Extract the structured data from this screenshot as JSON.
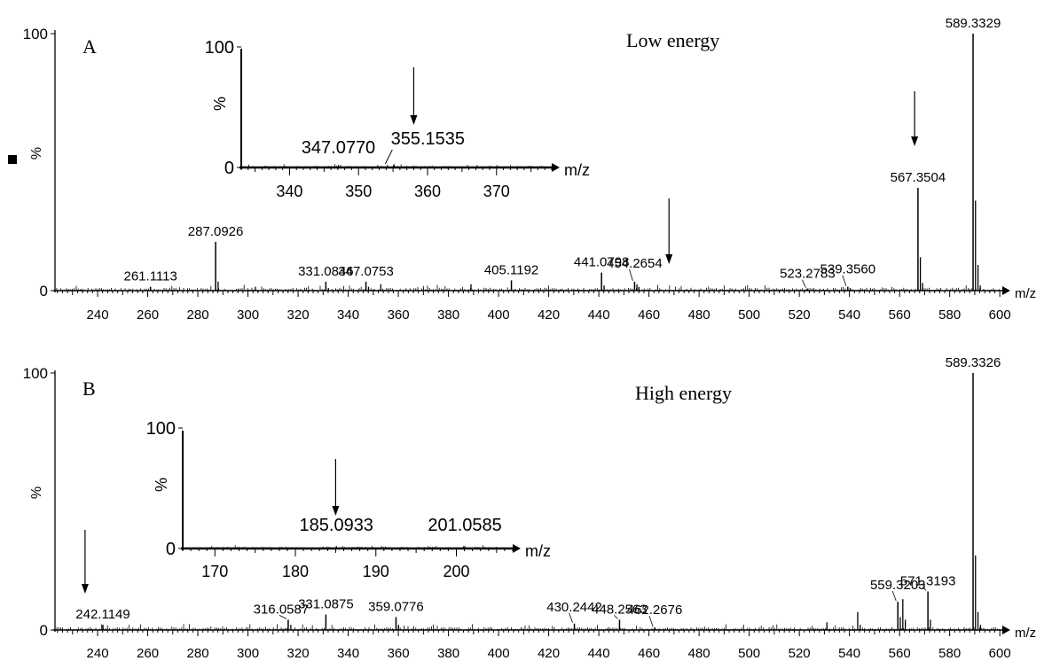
{
  "chart_data": [
    {
      "type": "bar",
      "panel_label": "A",
      "title": "Low energy",
      "xlabel": "m/z",
      "ylabel": "%",
      "xlim": [
        223,
        601
      ],
      "ylim": [
        0,
        100
      ],
      "xticks": [
        240,
        260,
        280,
        300,
        320,
        340,
        360,
        380,
        400,
        420,
        440,
        460,
        480,
        500,
        520,
        540,
        560,
        580,
        600
      ],
      "yticks": [
        0,
        100
      ],
      "peaks": [
        {
          "x": 261.1113,
          "y": 1.5,
          "label": "261.1113"
        },
        {
          "x": 287.0926,
          "y": 19,
          "label": "287.0926"
        },
        {
          "x": 331.0846,
          "y": 3.5,
          "label": "331.0846"
        },
        {
          "x": 347.0753,
          "y": 3.5,
          "label": "347.0753"
        },
        {
          "x": 405.1192,
          "y": 4,
          "label": "405.1192"
        },
        {
          "x": 441.0798,
          "y": 7,
          "label": "441.0798"
        },
        {
          "x": 454.2654,
          "y": 3.5,
          "label": "454.2654"
        },
        {
          "x": 523.2783,
          "y": 0.8,
          "label": "523.2783"
        },
        {
          "x": 539.356,
          "y": 1.5,
          "label": "539.3560"
        },
        {
          "x": 567.3504,
          "y": 40,
          "label": "567.3504"
        },
        {
          "x": 589.3329,
          "y": 100,
          "label": "589.3329"
        }
      ],
      "minor_peaks": [
        {
          "x": 288.1,
          "y": 3.5
        },
        {
          "x": 303,
          "y": 1.5
        },
        {
          "x": 332.1,
          "y": 1
        },
        {
          "x": 348.1,
          "y": 1.5
        },
        {
          "x": 353,
          "y": 2.5
        },
        {
          "x": 389,
          "y": 2.5
        },
        {
          "x": 442.1,
          "y": 2
        },
        {
          "x": 455.2,
          "y": 2.5
        },
        {
          "x": 456,
          "y": 1.5
        },
        {
          "x": 540.3,
          "y": 1
        },
        {
          "x": 568.3,
          "y": 13
        },
        {
          "x": 569.2,
          "y": 3
        },
        {
          "x": 590.3,
          "y": 35
        },
        {
          "x": 591.3,
          "y": 10
        },
        {
          "x": 592.2,
          "y": 2
        }
      ],
      "arrows_at_mz": [
        468,
        566
      ],
      "inset": {
        "xlabel": "m/z",
        "ylabel": "%",
        "xlim": [
          333,
          378
        ],
        "ylim": [
          0,
          100
        ],
        "xticks": [
          340,
          350,
          360,
          370
        ],
        "yticks": [
          0,
          100
        ],
        "peaks": [
          {
            "x": 347.077,
            "y": 0.5,
            "label": "347.0770"
          },
          {
            "x": 355.1535,
            "y": 1.2,
            "label": "355.1535"
          }
        ],
        "arrow_at_mz": 358
      }
    },
    {
      "type": "bar",
      "panel_label": "B",
      "title": "High energy",
      "xlabel": "m/z",
      "ylabel": "%",
      "xlim": [
        223,
        601
      ],
      "ylim": [
        0,
        100
      ],
      "xticks": [
        240,
        260,
        280,
        300,
        320,
        340,
        360,
        380,
        400,
        420,
        440,
        460,
        480,
        500,
        520,
        540,
        560,
        580,
        600
      ],
      "yticks": [
        0,
        100
      ],
      "peaks": [
        {
          "x": 242.1149,
          "y": 2,
          "label": "242.1149"
        },
        {
          "x": 316.0587,
          "y": 4,
          "label": "316.0587"
        },
        {
          "x": 331.0875,
          "y": 6,
          "label": "331.0875"
        },
        {
          "x": 359.0776,
          "y": 5,
          "label": "359.0776"
        },
        {
          "x": 430.2442,
          "y": 2.5,
          "label": "430.2442"
        },
        {
          "x": 448.2563,
          "y": 4,
          "label": "448.2563"
        },
        {
          "x": 462.2676,
          "y": 1,
          "label": "462.2676"
        },
        {
          "x": 559.3203,
          "y": 11,
          "label": "559.3203"
        },
        {
          "x": 571.3193,
          "y": 15,
          "label": "571.3193"
        },
        {
          "x": 589.3326,
          "y": 100,
          "label": "589.3326"
        }
      ],
      "minor_peaks": [
        {
          "x": 317.1,
          "y": 2
        },
        {
          "x": 360.1,
          "y": 2
        },
        {
          "x": 531,
          "y": 3
        },
        {
          "x": 543.3,
          "y": 7
        },
        {
          "x": 544.3,
          "y": 2
        },
        {
          "x": 560.3,
          "y": 5
        },
        {
          "x": 561.3,
          "y": 12
        },
        {
          "x": 562.3,
          "y": 4
        },
        {
          "x": 572.3,
          "y": 4
        },
        {
          "x": 590.3,
          "y": 29
        },
        {
          "x": 591.3,
          "y": 7
        },
        {
          "x": 592.3,
          "y": 2
        }
      ],
      "arrows_at_mz": [
        235
      ],
      "inset": {
        "xlabel": "m/z",
        "ylabel": "%",
        "xlim": [
          166,
          207
        ],
        "ylim": [
          0,
          100
        ],
        "xticks": [
          170,
          180,
          190,
          200
        ],
        "yticks": [
          0,
          100
        ],
        "peaks": [
          {
            "x": 185.0933,
            "y": 0.5,
            "label": "185.0933"
          },
          {
            "x": 201.0585,
            "y": 0.5,
            "label": "201.0585"
          }
        ],
        "arrow_at_mz": 185
      }
    }
  ]
}
